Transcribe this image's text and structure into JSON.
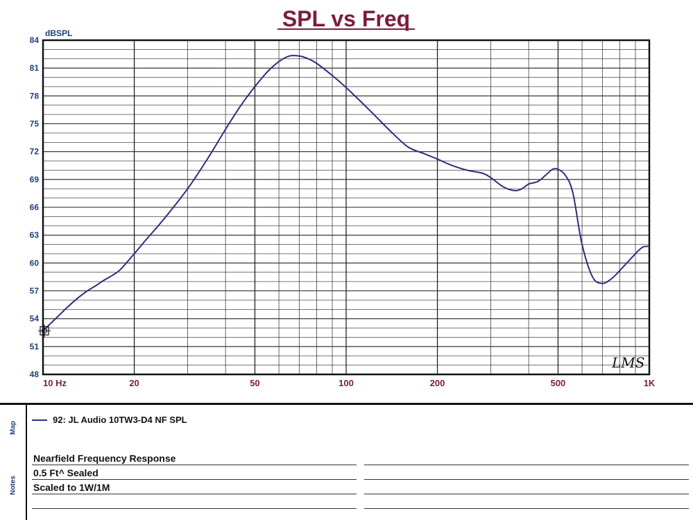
{
  "chart_data": {
    "type": "line",
    "title": "SPL vs Freq",
    "ylabel": "dBSPL",
    "xlabel": "",
    "x_scale": "log",
    "xlim": [
      10,
      1000
    ],
    "ylim": [
      48,
      84
    ],
    "yticks": [
      84,
      81,
      78,
      75,
      72,
      69,
      66,
      63,
      60,
      57,
      54,
      51,
      48
    ],
    "xtick_labels": [
      {
        "value": 10,
        "label": "10 Hz"
      },
      {
        "value": 20,
        "label": "20"
      },
      {
        "value": 50,
        "label": "50"
      },
      {
        "value": 100,
        "label": "100"
      },
      {
        "value": 200,
        "label": "200"
      },
      {
        "value": 500,
        "label": "500"
      },
      {
        "value": 1000,
        "label": "1K"
      }
    ],
    "grid": true,
    "watermark": "LMS",
    "series": [
      {
        "name": "92: JL Audio 10TW3-D4 NF SPL",
        "color": "#2b2e7a",
        "x": [
          10,
          11,
          12,
          13,
          14,
          15,
          16,
          17,
          18,
          20,
          22,
          25,
          30,
          35,
          40,
          45,
          50,
          55,
          60,
          65,
          70,
          75,
          80,
          90,
          100,
          120,
          140,
          160,
          180,
          200,
          220,
          250,
          280,
          300,
          330,
          360,
          380,
          400,
          430,
          460,
          480,
          500,
          530,
          560,
          600,
          650,
          700,
          750,
          800,
          900,
          950,
          1000
        ],
        "y": [
          52.7,
          54.0,
          55.2,
          56.2,
          57.0,
          57.6,
          58.2,
          58.7,
          59.3,
          61.0,
          62.6,
          64.7,
          68.0,
          71.3,
          74.4,
          77.0,
          79.0,
          80.6,
          81.7,
          82.3,
          82.3,
          82.0,
          81.5,
          80.2,
          78.9,
          76.4,
          74.2,
          72.5,
          71.8,
          71.2,
          70.6,
          70.0,
          69.7,
          69.2,
          68.2,
          67.8,
          68.0,
          68.5,
          68.8,
          69.6,
          70.1,
          70.1,
          69.4,
          67.5,
          62.0,
          58.5,
          57.8,
          58.3,
          59.2,
          61.0,
          61.7,
          61.8
        ]
      }
    ]
  },
  "legend": {
    "panel_label": "Map",
    "entry_label": "92: JL Audio 10TW3-D4 NF SPL",
    "entry_color": "#2b2e7a"
  },
  "notes": {
    "panel_label": "Notes",
    "lines": [
      "Nearfield Frequency Response",
      "0.5 Ft^ Sealed",
      "Scaled to 1W/1M",
      ""
    ]
  },
  "colors": {
    "title": "#7a1e3a",
    "y_ticks": "#1f3f7a",
    "x_ticks": "#7a1e3a",
    "curve": "#2b2e7a",
    "grid": "#222222"
  }
}
